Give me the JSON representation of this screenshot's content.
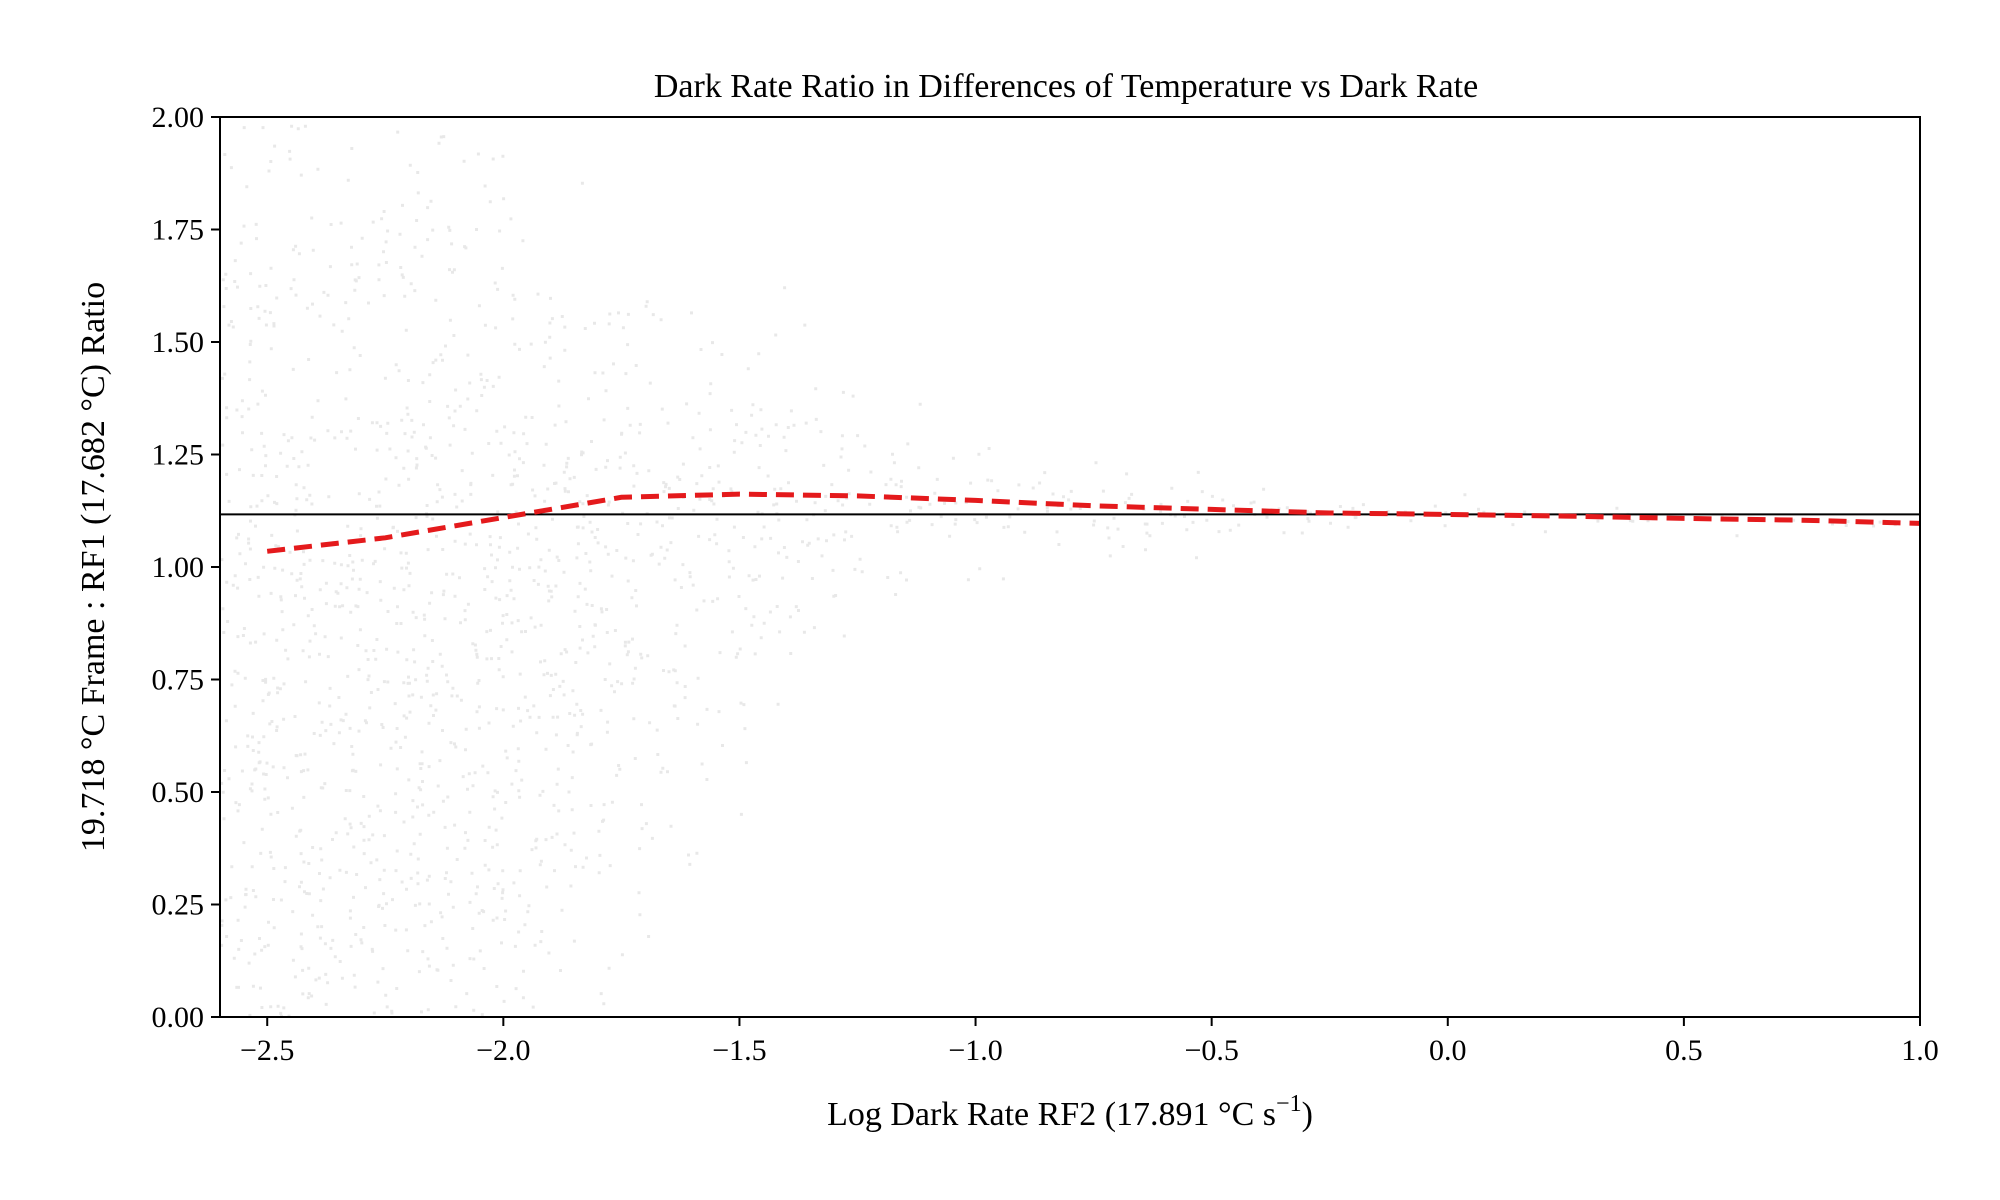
{
  "chart_data": {
    "type": "scatter",
    "title": "Dark Rate Ratio in Differences of Temperature vs Dark Rate",
    "xlabel": "Log Dark Rate RF2 (17.891 °C s",
    "xlabel_sup": "−1",
    "xlabel_close": ")",
    "ylabel": "19.718 °C Frame : RF1 (17.682 °C) Ratio",
    "xlim": [
      -2.6,
      1.0
    ],
    "ylim": [
      0.0,
      2.0
    ],
    "x_ticks": [
      -2.5,
      -2.0,
      -1.5,
      -1.0,
      -0.5,
      0.0,
      0.5,
      1.0
    ],
    "x_tick_labels": [
      "−2.5",
      "−2.0",
      "−1.5",
      "−1.0",
      "−0.5",
      "0.0",
      "0.5",
      "1.0"
    ],
    "y_ticks": [
      0.0,
      0.25,
      0.5,
      0.75,
      1.0,
      1.25,
      1.5,
      1.75,
      2.0
    ],
    "y_tick_labels": [
      "0.00",
      "0.25",
      "0.50",
      "0.75",
      "1.00",
      "1.25",
      "1.50",
      "1.75",
      "2.00"
    ],
    "grid": false,
    "reference_line": {
      "y": 1.117,
      "color": "#000000"
    },
    "trend_line": {
      "style": "dashed",
      "color": "#e41a1c",
      "x": [
        -2.5,
        -2.25,
        -2.0,
        -1.75,
        -1.5,
        -1.25,
        -1.0,
        -0.75,
        -0.5,
        -0.25,
        0.0,
        0.25,
        0.5,
        0.75,
        1.0
      ],
      "y": [
        1.035,
        1.065,
        1.11,
        1.155,
        1.162,
        1.158,
        1.148,
        1.136,
        1.128,
        1.12,
        1.117,
        1.113,
        1.108,
        1.104,
        1.097
      ]
    },
    "point_color": "#000000",
    "density_profile": {
      "x": [
        -2.55,
        -2.4,
        -2.2,
        -2.0,
        -1.8,
        -1.6,
        -1.4,
        -1.2,
        -1.0,
        -0.8,
        -0.6,
        -0.4,
        -0.2,
        0.0,
        0.25,
        0.5,
        0.75,
        1.0
      ],
      "center": [
        0.8,
        0.75,
        0.72,
        0.8,
        0.92,
        1.04,
        1.1,
        1.13,
        1.135,
        1.13,
        1.125,
        1.12,
        1.12,
        1.118,
        1.115,
        1.11,
        1.105,
        1.1
      ],
      "spread": [
        1.4,
        1.4,
        1.35,
        1.1,
        0.8,
        0.55,
        0.38,
        0.26,
        0.18,
        0.12,
        0.085,
        0.06,
        0.045,
        0.035,
        0.028,
        0.022,
        0.018,
        0.015
      ],
      "weight": [
        0.85,
        1.0,
        1.0,
        0.85,
        0.55,
        0.35,
        0.22,
        0.14,
        0.09,
        0.06,
        0.045,
        0.035,
        0.03,
        0.025,
        0.02,
        0.016,
        0.012,
        0.01
      ]
    }
  }
}
